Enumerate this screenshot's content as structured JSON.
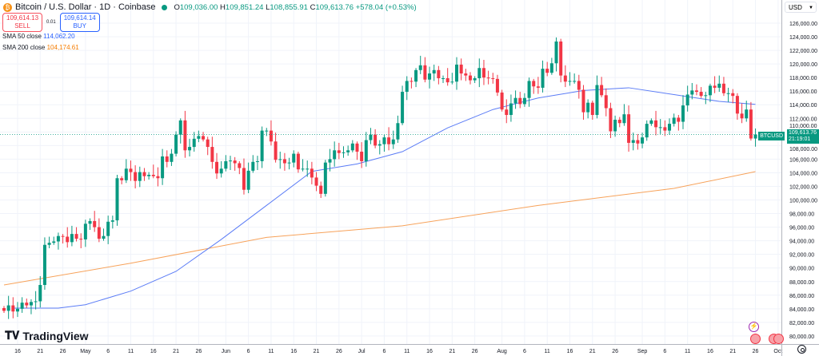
{
  "header": {
    "symbol_title": "Bitcoin / U.S. Dollar · 1D · Coinbase",
    "coin_icon": "bitcoin-icon",
    "status": "market-open",
    "open_label": "O",
    "open": "109,036.00",
    "high_label": "H",
    "high": "109,851.24",
    "low_label": "L",
    "low": "108,855.91",
    "close_label": "C",
    "close": "109,613.76",
    "change": "+578.04 (+0.53%)"
  },
  "trade": {
    "sell_price": "109,614.13",
    "sell_label": "SELL",
    "spread": "0.01",
    "buy_price": "109,614.14",
    "buy_label": "BUY"
  },
  "indicators": [
    {
      "label": "SMA 50 close",
      "value": "114,062.20",
      "color": "#5b7cf6"
    },
    {
      "label": "SMA 200 close",
      "value": "104,174.61",
      "color": "#f7a25a"
    }
  ],
  "price_axis": {
    "currency": "USD",
    "ticks": [
      "126,000.00",
      "124,000.00",
      "122,000.00",
      "120,000.00",
      "118,000.00",
      "116,000.00",
      "114,000.00",
      "112,000.00",
      "110,000.00",
      "108,000.00",
      "106,000.00",
      "104,000.00",
      "102,000.00",
      "100,000.00",
      "98,000.00",
      "96,000.00",
      "94,000.00",
      "92,000.00",
      "90,000.00",
      "88,000.00",
      "86,000.00",
      "84,000.00",
      "82,000.00",
      "80,000.00"
    ],
    "last_symbol": "BTCUSD",
    "last_price": "109,613.76",
    "countdown": "21:19:01"
  },
  "time_axis": {
    "labels": [
      "16",
      "21",
      "26",
      "May",
      "6",
      "11",
      "16",
      "21",
      "26",
      "Jun",
      "6",
      "11",
      "16",
      "21",
      "26",
      "Jul",
      "6",
      "11",
      "16",
      "21",
      "26",
      "Aug",
      "6",
      "11",
      "16",
      "21",
      "26",
      "Sep",
      "6",
      "11",
      "16",
      "21",
      "26",
      "Oct"
    ]
  },
  "branding": {
    "logo": "TradingView"
  },
  "colors": {
    "up": "#089981",
    "down": "#f23645",
    "sma50": "#5b7cf6",
    "sma200": "#f7a25a",
    "grid": "#f0f3fa"
  },
  "chart_data": {
    "type": "candlestick",
    "start_date": "2025-04-13",
    "ylim": [
      80000,
      126000
    ],
    "closes": [
      83.7,
      84.5,
      83.6,
      84.0,
      84.9,
      84.5,
      85.0,
      85.1,
      87.5,
      93.4,
      93.7,
      93.9,
      94.7,
      94.6,
      93.8,
      95.0,
      94.3,
      94.2,
      96.5,
      96.9,
      96.0,
      94.3,
      94.7,
      96.8,
      97.0,
      103.2,
      102.9,
      104.6,
      104.1,
      102.8,
      104.1,
      103.5,
      103.7,
      103.5,
      103.2,
      106.4,
      105.6,
      106.8,
      109.6,
      111.7,
      107.3,
      107.8,
      109.0,
      109.4,
      108.9,
      107.8,
      105.6,
      103.9,
      104.6,
      105.7,
      105.8,
      105.4,
      104.7,
      101.5,
      104.3,
      105.6,
      105.7,
      110.2,
      110.2,
      108.6,
      105.9,
      106.0,
      105.4,
      105.5,
      106.8,
      104.5,
      104.6,
      104.6,
      103.3,
      102.1,
      100.9,
      105.5,
      106.0,
      107.3,
      106.9,
      107.0,
      107.3,
      108.3,
      107.1,
      105.7,
      108.8,
      109.6,
      108.0,
      108.2,
      109.2,
      108.2,
      108.9,
      111.3,
      115.9,
      117.5,
      117.4,
      119.1,
      119.8,
      117.7,
      118.6,
      119.1,
      117.9,
      117.9,
      117.3,
      117.4,
      119.9,
      118.6,
      118.3,
      117.6,
      117.9,
      119.4,
      118.0,
      117.9,
      117.8,
      115.8,
      113.3,
      112.5,
      114.2,
      115.0,
      114.1,
      115.0,
      117.5,
      116.7,
      116.5,
      119.3,
      118.7,
      120.1,
      123.3,
      118.3,
      117.4,
      117.5,
      117.5,
      116.2,
      112.9,
      114.3,
      112.5,
      116.9,
      115.4,
      113.5,
      110.1,
      111.8,
      111.3,
      112.6,
      108.4,
      108.8,
      108.3,
      109.2,
      111.2,
      111.7,
      110.7,
      110.7,
      110.2,
      111.2,
      112.1,
      111.5,
      113.9,
      115.5,
      116.1,
      115.9,
      115.3,
      115.4,
      116.8,
      116.5,
      117.1,
      115.7,
      115.7,
      115.3,
      112.7,
      112.0,
      113.3,
      109.036,
      109.61376
    ],
    "close_unit": "thousand USD",
    "sma50": [
      [
        "2025-04-15",
        84.1
      ],
      [
        "2025-04-25",
        84.1
      ],
      [
        "2025-05-01",
        84.6
      ],
      [
        "2025-05-11",
        86.6
      ],
      [
        "2025-05-21",
        89.5
      ],
      [
        "2025-05-31",
        94.2
      ],
      [
        "2025-06-10",
        99.2
      ],
      [
        "2025-06-20",
        104.2
      ],
      [
        "2025-06-30",
        105.3
      ],
      [
        "2025-07-10",
        107.1
      ],
      [
        "2025-07-20",
        110.6
      ],
      [
        "2025-07-30",
        113.3
      ],
      [
        "2025-08-09",
        115.0
      ],
      [
        "2025-08-19",
        116.1
      ],
      [
        "2025-08-29",
        116.5
      ],
      [
        "2025-09-08",
        115.5
      ],
      [
        "2025-09-18",
        114.5
      ],
      [
        "2025-09-26",
        114.06
      ]
    ],
    "sma200": [
      [
        "2025-04-13",
        87.5
      ],
      [
        "2025-05-11",
        90.7
      ],
      [
        "2025-06-10",
        94.5
      ],
      [
        "2025-07-10",
        96.2
      ],
      [
        "2025-08-09",
        99.2
      ],
      [
        "2025-09-08",
        101.7
      ],
      [
        "2025-09-26",
        104.17
      ]
    ]
  }
}
